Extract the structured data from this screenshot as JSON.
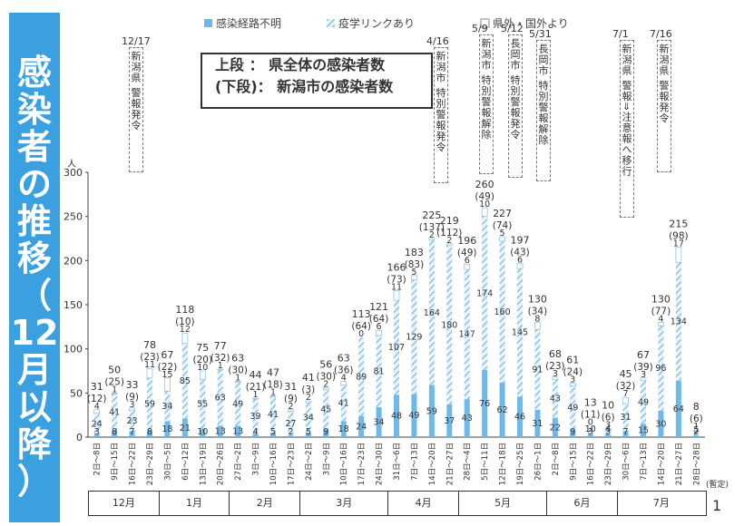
{
  "sidebar": {
    "title_chars": [
      "感",
      "染",
      "者",
      "の",
      "推",
      "移",
      "（",
      "12",
      "月",
      "以",
      "降",
      "）"
    ]
  },
  "caption": {
    "line1": "上段 ： 県全体の感染者数",
    "line2": "(下段)： 新潟市の感染者数"
  },
  "legend": [
    {
      "name": "感染経路不明",
      "color": "#6fb8ea",
      "pattern": "solid"
    },
    {
      "name": "疫学リンクあり",
      "color": "#7fbfe8",
      "pattern": "hatched"
    },
    {
      "name": "県外・国外より",
      "color": "#ffffff",
      "pattern": "outline"
    }
  ],
  "annotations": [
    {
      "date": "12/17",
      "text": "新潟県 警報発令"
    },
    {
      "date": "4/16",
      "text": "新潟市 特別警報発令"
    },
    {
      "date": "5/9",
      "text": "新潟市 特別警報解除"
    },
    {
      "date": "5/12",
      "text": "長岡市 特別警報発令"
    },
    {
      "date": "5/31",
      "text": "長岡市 特別警報解除"
    },
    {
      "date": "7/1",
      "text": "新潟県 警報⇒注意報へ移行"
    },
    {
      "date": "7/16",
      "text": "新潟県 警報発令"
    }
  ],
  "months": [
    "12月",
    "1月",
    "2月",
    "3月",
    "4月",
    "5月",
    "6月",
    "7月"
  ],
  "page_number": "1",
  "provisional_label": "(暫定)",
  "chart_data": {
    "type": "bar",
    "stacked": true,
    "ylabel": "人",
    "ylim": [
      0,
      300
    ],
    "yticks": [
      0,
      50,
      100,
      150,
      200,
      250,
      300
    ],
    "categories": [
      "2日〜8日",
      "9日〜15日",
      "16日〜22日",
      "23日〜29日",
      "30日〜5日",
      "6日〜12日",
      "13日〜19日",
      "20日〜26日",
      "27日〜2日",
      "3日〜9日",
      "10日〜16日",
      "17日〜23日",
      "24日〜2日",
      "3日〜9日",
      "10日〜16日",
      "17日〜23日",
      "24日〜30日",
      "31日〜6日",
      "7日〜13日",
      "14日〜20日",
      "21日〜27日",
      "28日〜4日",
      "5日〜11日",
      "12日〜18日",
      "19日〜25日",
      "26日〜1日",
      "2日〜8日",
      "9日〜15日",
      "16日〜22日",
      "23日〜29日",
      "30日〜6日",
      "7日〜13日",
      "14日〜20日",
      "21日〜27日",
      "28日〜28日"
    ],
    "series": [
      {
        "name": "感染経路不明",
        "values": [
          3,
          8,
          7,
          8,
          18,
          21,
          10,
          13,
          13,
          4,
          5,
          2,
          5,
          9,
          18,
          24,
          34,
          48,
          49,
          59,
          37,
          43,
          76,
          62,
          46,
          31,
          22,
          9,
          3,
          3,
          7,
          15,
          30,
          64,
          2
        ]
      },
      {
        "name": "疫学リンクあり",
        "values": [
          24,
          41,
          23,
          59,
          34,
          85,
          55,
          63,
          49,
          39,
          41,
          27,
          34,
          45,
          41,
          89,
          81,
          107,
          129,
          164,
          180,
          147,
          174,
          160,
          145,
          91,
          43,
          49,
          10,
          4,
          31,
          49,
          96,
          134,
          5
        ]
      },
      {
        "name": "県外・国外より",
        "values": [
          4,
          1,
          3,
          11,
          15,
          12,
          10,
          1,
          1,
          1,
          1,
          2,
          2,
          2,
          4,
          0,
          6,
          11,
          5,
          2,
          2,
          6,
          10,
          5,
          6,
          8,
          3,
          3,
          0,
          3,
          7,
          3,
          4,
          17,
          1
        ]
      }
    ],
    "totals": [
      "31",
      "50",
      "33",
      "78",
      "67",
      "118",
      "75",
      "77",
      "63",
      "44",
      "47",
      "31",
      "41",
      "56",
      "63",
      "113",
      "121",
      "166",
      "183",
      "225",
      "219",
      "196",
      "260",
      "227",
      "197",
      "130",
      "68",
      "61",
      "13",
      "10",
      "45",
      "67",
      "130",
      "215",
      "8"
    ],
    "niigata_city": [
      "(12)",
      "(25)",
      "(9)",
      "(23)",
      "(22)",
      "(10)",
      "(20)",
      "(32)",
      "(30)",
      "(21)",
      "(18)",
      "(9)",
      "(3)",
      "(30)",
      "(36)",
      "(64)",
      "(64)",
      "(73)",
      "(83)",
      "(137)",
      "(112)",
      "(49)",
      "(49)",
      "(74)",
      "(43)",
      "(34)",
      "(23)",
      "(24)",
      "(11)",
      "(6)",
      "(32)",
      "(39)",
      "(77)",
      "(98)",
      "(6)"
    ]
  }
}
